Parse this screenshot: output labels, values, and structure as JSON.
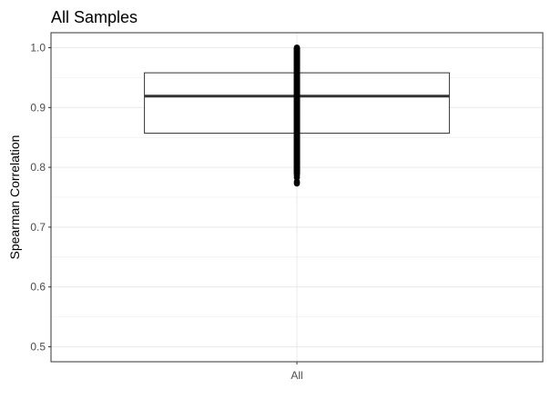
{
  "chart_data": {
    "type": "box",
    "title": "All Samples",
    "xlabel": "",
    "ylabel": "Spearman Correlation",
    "categories": [
      "All"
    ],
    "ylim": [
      0.475,
      1.025
    ],
    "yticks": [
      0.5,
      0.6,
      0.7,
      0.8,
      0.9,
      1.0
    ],
    "ytick_labels": [
      "0.5",
      "0.6",
      "0.7",
      "0.8",
      "0.9",
      "1.0"
    ],
    "grid": true,
    "boxes": [
      {
        "category": "All",
        "q1": 0.857,
        "median": 0.919,
        "q3": 0.958,
        "whisker_low": 0.79,
        "whisker_high": 1.0,
        "outliers": [
          0.787,
          0.783,
          0.776,
          0.773
        ]
      }
    ],
    "colors": {
      "box_fill": "#ffffff",
      "box_line": "#333333",
      "points": "#000000",
      "grid": "#ebebeb",
      "panel_border": "#333333"
    }
  }
}
